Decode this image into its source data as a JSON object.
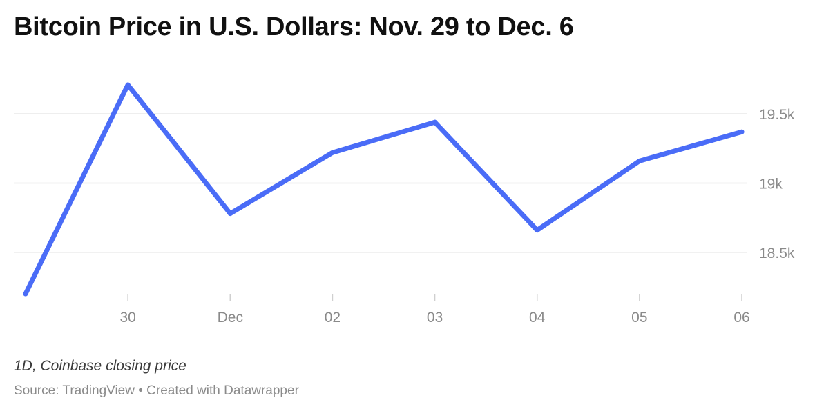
{
  "header": {
    "title": "Bitcoin Price in U.S. Dollars: Nov. 29 to Dec. 6"
  },
  "footer": {
    "note": "1D, Coinbase closing price",
    "source": "Source: TradingView • Created with Datawrapper"
  },
  "colors": {
    "line": "#4a6cf7",
    "grid": "#e3e3e3",
    "tick_text": "#8a8a8a"
  },
  "chart_data": {
    "type": "line",
    "title": "Bitcoin Price in U.S. Dollars: Nov. 29 to Dec. 6",
    "xlabel": "",
    "ylabel": "",
    "x": [
      "2022-11-29",
      "2022-11-30",
      "2022-12-01",
      "2022-12-02",
      "2022-12-03",
      "2022-12-04",
      "2022-12-05",
      "2022-12-06"
    ],
    "series": [
      {
        "values": [
          18200,
          19710,
          18780,
          19220,
          19440,
          18660,
          19160,
          19370
        ]
      }
    ],
    "x_tick_labels": [
      {
        "x": "2022-11-30",
        "label": "30"
      },
      {
        "x": "2022-12-01",
        "label": "Dec"
      },
      {
        "x": "2022-12-02",
        "label": "02"
      },
      {
        "x": "2022-12-03",
        "label": "03"
      },
      {
        "x": "2022-12-04",
        "label": "04"
      },
      {
        "x": "2022-12-05",
        "label": "05"
      },
      {
        "x": "2022-12-06",
        "label": "06"
      }
    ],
    "y_ticks": [
      {
        "value": 18500,
        "label": "18.5k"
      },
      {
        "value": 19000,
        "label": "19k"
      },
      {
        "value": 19500,
        "label": "19.5k"
      }
    ],
    "ylim": [
      18200,
      19710
    ],
    "y_axis_position": "right",
    "grid": true,
    "legend": "none"
  }
}
